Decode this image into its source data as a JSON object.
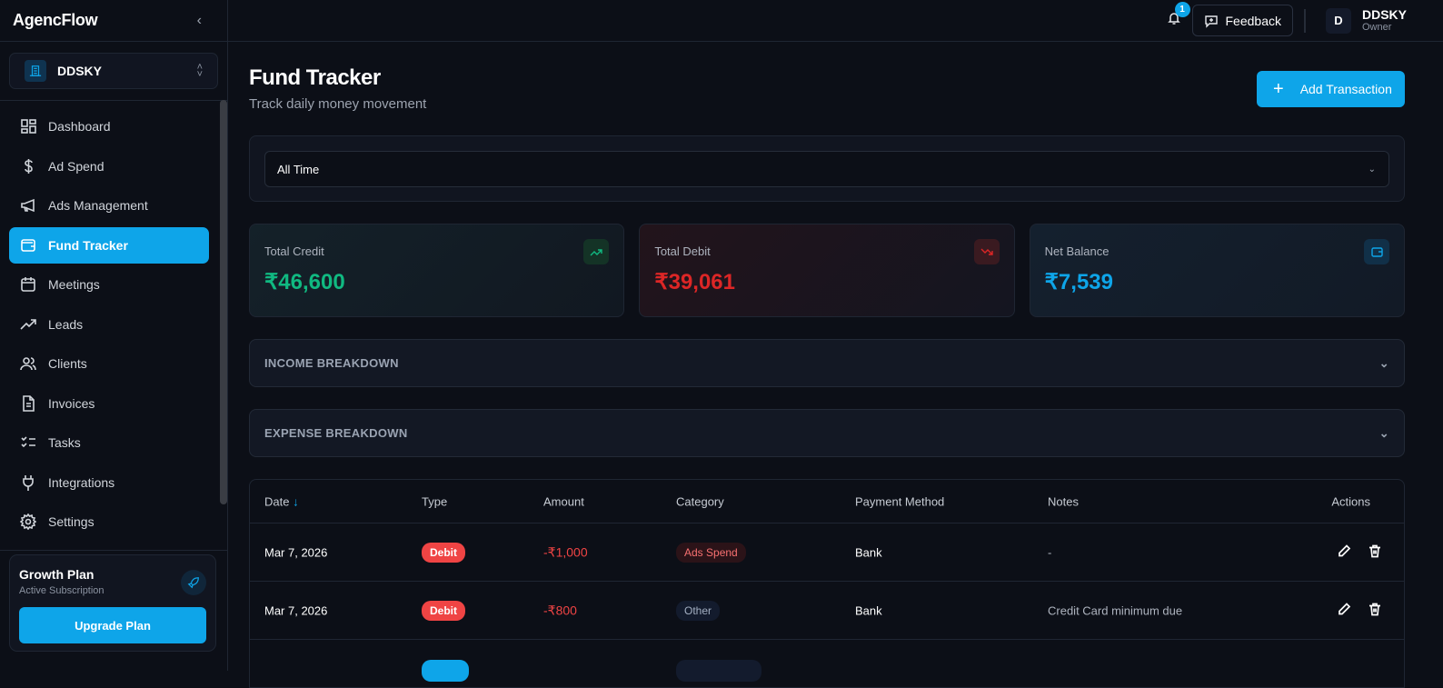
{
  "app": {
    "name": "AgencFlow"
  },
  "workspace": {
    "name": "DDSKY"
  },
  "sidebar": {
    "items": [
      {
        "label": "Dashboard",
        "icon": "grid-icon"
      },
      {
        "label": "Ad Spend",
        "icon": "dollar-icon"
      },
      {
        "label": "Ads Management",
        "icon": "megaphone-icon"
      },
      {
        "label": "Fund Tracker",
        "icon": "wallet-icon",
        "active": true
      },
      {
        "label": "Meetings",
        "icon": "calendar-icon"
      },
      {
        "label": "Leads",
        "icon": "trending-up-icon"
      },
      {
        "label": "Clients",
        "icon": "users-icon"
      },
      {
        "label": "Invoices",
        "icon": "file-icon"
      },
      {
        "label": "Tasks",
        "icon": "list-check-icon"
      },
      {
        "label": "Integrations",
        "icon": "plug-icon"
      },
      {
        "label": "Settings",
        "icon": "gear-icon"
      }
    ]
  },
  "plan": {
    "title": "Growth Plan",
    "subtitle": "Active Subscription",
    "button": "Upgrade Plan"
  },
  "topbar": {
    "notifications": "1",
    "feedback": "Feedback",
    "user": {
      "initial": "D",
      "name": "DDSKY",
      "role": "Owner"
    }
  },
  "page": {
    "title": "Fund Tracker",
    "subtitle": "Track daily money movement",
    "add_button": "Add Transaction"
  },
  "filter": {
    "selected": "All Time"
  },
  "stats": [
    {
      "label": "Total Credit",
      "value": "₹46,600",
      "color": "#10b981"
    },
    {
      "label": "Total Debit",
      "value": "₹39,061",
      "color": "#dc2626"
    },
    {
      "label": "Net Balance",
      "value": "₹7,539",
      "color": "#0ea5e9"
    }
  ],
  "sections": {
    "income": "INCOME BREAKDOWN",
    "expense": "EXPENSE BREAKDOWN"
  },
  "table": {
    "columns": [
      "Date",
      "Type",
      "Amount",
      "Category",
      "Payment Method",
      "Notes",
      "Actions"
    ],
    "sort_indicator": "↓",
    "rows": [
      {
        "date": "Mar 7, 2026",
        "type": "Debit",
        "amount": "-₹1,000",
        "category": "Ads Spend",
        "method": "Bank",
        "notes": "-"
      },
      {
        "date": "Mar 7, 2026",
        "type": "Debit",
        "amount": "-₹800",
        "category": "Other",
        "method": "Bank",
        "notes": "Credit Card minimum due"
      }
    ]
  }
}
